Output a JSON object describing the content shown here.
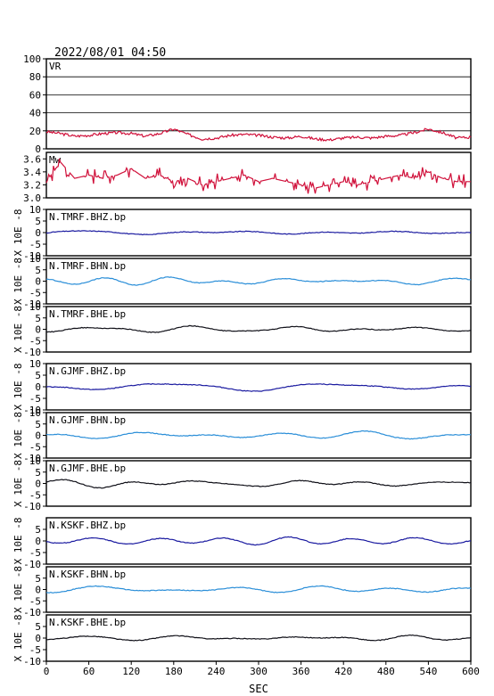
{
  "header": {
    "timestamp": "2022/08/01 04:50"
  },
  "x_axis": {
    "label": "SEC",
    "range": [
      0,
      600
    ],
    "ticks": [
      0,
      60,
      120,
      180,
      240,
      300,
      360,
      420,
      480,
      540,
      600
    ]
  },
  "seis_ylabel": "X 10E -8",
  "colors": {
    "frame": "#000000",
    "vr_mw": "#d0103a",
    "bhz": "#1a1aa0",
    "bhn": "#2a8ed8",
    "bhe": "#101018"
  },
  "chart_data": [
    {
      "type": "line",
      "panel_label": "VR",
      "ylim": [
        0,
        100
      ],
      "yticks": [
        "100",
        "80",
        "60",
        "40",
        "20",
        "0"
      ],
      "grid": true,
      "x": [
        0,
        20,
        40,
        60,
        80,
        100,
        120,
        140,
        160,
        180,
        200,
        220,
        240,
        260,
        280,
        300,
        320,
        340,
        360,
        380,
        400,
        420,
        440,
        460,
        480,
        500,
        520,
        540,
        560,
        580,
        600
      ],
      "values": [
        19,
        17,
        14,
        15,
        17,
        18,
        17,
        14,
        17,
        22,
        16,
        11,
        12,
        15,
        16,
        15,
        13,
        12,
        14,
        11,
        10,
        12,
        13,
        12,
        14,
        15,
        18,
        22,
        18,
        12,
        13
      ]
    },
    {
      "type": "line",
      "panel_label": "Mw",
      "ylim": [
        3.0,
        3.7
      ],
      "yticks": [
        "3.6",
        "3.4",
        "3.2",
        "3.0"
      ],
      "grid": false,
      "x": [
        0,
        20,
        40,
        60,
        80,
        100,
        120,
        140,
        160,
        180,
        200,
        220,
        240,
        260,
        280,
        300,
        320,
        340,
        360,
        380,
        400,
        420,
        440,
        460,
        480,
        500,
        520,
        540,
        560,
        580,
        600
      ],
      "values": [
        3.25,
        3.55,
        3.3,
        3.35,
        3.3,
        3.35,
        3.45,
        3.3,
        3.35,
        3.25,
        3.3,
        3.2,
        3.25,
        3.3,
        3.35,
        3.25,
        3.3,
        3.25,
        3.2,
        3.15,
        3.2,
        3.25,
        3.2,
        3.25,
        3.3,
        3.35,
        3.3,
        3.4,
        3.3,
        3.25,
        3.25
      ]
    },
    {
      "type": "line",
      "panel_label": "N.TMRF.BHZ.bp",
      "ylim": [
        -10,
        10
      ],
      "yticks": [
        "10",
        "5",
        "0",
        "-5",
        "-10"
      ],
      "amplitude": 1.0,
      "color_key": "bhz"
    },
    {
      "type": "line",
      "panel_label": "N.TMRF.BHN.bp",
      "ylim": [
        -10,
        10
      ],
      "yticks": [
        "10",
        "5",
        "0",
        "-5",
        "-10"
      ],
      "amplitude": 1.2,
      "color_key": "bhn"
    },
    {
      "type": "line",
      "panel_label": "N.TMRF.BHE.bp",
      "ylim": [
        -10,
        10
      ],
      "yticks": [
        "10",
        "5",
        "0",
        "-5",
        "-10"
      ],
      "amplitude": 1.2,
      "color_key": "bhe"
    },
    {
      "type": "line",
      "panel_label": "N.GJMF.BHZ.bp",
      "ylim": [
        -10,
        10
      ],
      "yticks": [
        "10",
        "5",
        "0",
        "-5",
        "-10"
      ],
      "amplitude": 1.2,
      "color_key": "bhz"
    },
    {
      "type": "line",
      "panel_label": "N.GJMF.BHN.bp",
      "ylim": [
        -10,
        10
      ],
      "yticks": [
        "10",
        "5",
        "0",
        "-5",
        "-10"
      ],
      "amplitude": 1.3,
      "color_key": "bhn"
    },
    {
      "type": "line",
      "panel_label": "N.GJMF.BHE.bp",
      "ylim": [
        -10,
        10
      ],
      "yticks": [
        "10",
        "5",
        "0",
        "-5",
        "-10"
      ],
      "amplitude": 1.3,
      "color_key": "bhe"
    },
    {
      "type": "line",
      "panel_label": "N.KSKF.BHZ.bp",
      "ylim": [
        -10,
        10
      ],
      "yticks": [
        "5",
        "0",
        "-5",
        "-10"
      ],
      "amplitude": 1.4,
      "color_key": "bhz"
    },
    {
      "type": "line",
      "panel_label": "N.KSKF.BHN.bp",
      "ylim": [
        -10,
        10
      ],
      "yticks": [
        "5",
        "0",
        "-5",
        "-10"
      ],
      "amplitude": 1.1,
      "color_key": "bhn"
    },
    {
      "type": "line",
      "panel_label": "N.KSKF.BHE.bp",
      "ylim": [
        -10,
        10
      ],
      "yticks": [
        "5",
        "0",
        "-5",
        "-10"
      ],
      "amplitude": 1.1,
      "color_key": "bhe"
    }
  ]
}
